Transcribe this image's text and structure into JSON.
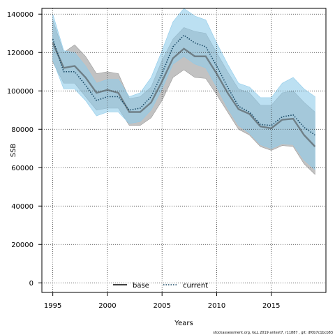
{
  "chart_data": {
    "type": "line",
    "title": "",
    "xlabel": "Years",
    "ylabel": "SSB",
    "xlim": [
      1994,
      2020
    ],
    "ylim": [
      -5000,
      143000
    ],
    "xticks": [
      1995,
      2000,
      2005,
      2010,
      2015
    ],
    "yticks": [
      0,
      20000,
      40000,
      60000,
      80000,
      100000,
      120000,
      140000
    ],
    "grid": true,
    "legend_position": "bottom-center",
    "x": [
      1995,
      1996,
      1997,
      1998,
      1999,
      2000,
      2001,
      2002,
      2003,
      2004,
      2005,
      2006,
      2007,
      2008,
      2009,
      2010,
      2011,
      2012,
      2013,
      2014,
      2015,
      2016,
      2017,
      2018,
      2019
    ],
    "series": [
      {
        "name": "base",
        "style": "solid",
        "color": "#000000",
        "band_color": "#9a9a9a",
        "values": [
          125000,
          112000,
          113000,
          107000,
          99000,
          100500,
          99000,
          89000,
          89000,
          94000,
          105000,
          117000,
          122000,
          118000,
          118000,
          109000,
          99000,
          90500,
          88000,
          81500,
          80500,
          85000,
          85500,
          77000,
          71000
        ],
        "lower": [
          115000,
          104000,
          104000,
          97000,
          90000,
          91000,
          91000,
          82000,
          82000,
          86000,
          95000,
          107000,
          111000,
          107000,
          106500,
          98000,
          89000,
          80000,
          77000,
          71000,
          69000,
          71500,
          71000,
          62000,
          56500
        ],
        "upper": [
          137000,
          120000,
          124000,
          118000,
          109000,
          110000,
          109000,
          96000,
          97000,
          102000,
          116000,
          127000,
          133000,
          131000,
          130000,
          120000,
          110000,
          101000,
          99000,
          92500,
          92500,
          99000,
          100000,
          94000,
          89000
        ]
      },
      {
        "name": "current",
        "style": "dotted",
        "color": "#1a4a66",
        "band_color": "#8fcbea",
        "values": [
          127000,
          110000,
          110000,
          103000,
          95000,
          97000,
          97000,
          90000,
          91000,
          97000,
          109000,
          123000,
          129000,
          125000,
          123000,
          113000,
          102000,
          92000,
          89000,
          82500,
          82000,
          86500,
          87500,
          81000,
          77000
        ],
        "lower": [
          116000,
          101000,
          101000,
          95000,
          87000,
          89000,
          89000,
          83000,
          84000,
          90000,
          101000,
          114000,
          118000,
          114000,
          112000,
          102000,
          91000,
          82000,
          78000,
          72000,
          70000,
          72500,
          72000,
          64000,
          59000
        ],
        "upper": [
          140000,
          121000,
          120000,
          113000,
          104000,
          106000,
          106000,
          97000,
          99000,
          107000,
          121000,
          136000,
          143000,
          139000,
          137000,
          125000,
          114000,
          104000,
          102000,
          96500,
          96500,
          104000,
          107000,
          101000,
          97000
        ]
      }
    ]
  },
  "footnote": "stockassessment.org, GLL 2019 antest7, r11887 , git: df0b7c1bcb83"
}
